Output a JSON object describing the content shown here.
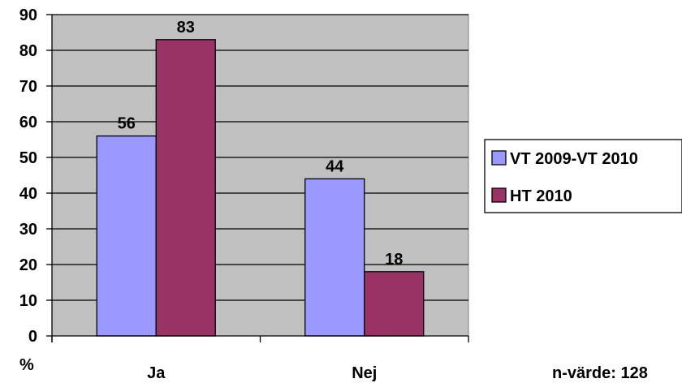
{
  "chart_data": {
    "type": "bar",
    "categories": [
      "Ja",
      "Nej"
    ],
    "series": [
      {
        "name": "VT 2009-VT 2010",
        "values": [
          56,
          44
        ],
        "color": "#9999ff"
      },
      {
        "name": "HT 2010",
        "values": [
          83,
          18
        ],
        "color": "#993366"
      }
    ],
    "ylim": [
      0,
      90
    ],
    "yticks": [
      0,
      10,
      20,
      30,
      40,
      50,
      60,
      70,
      80,
      90
    ],
    "ylabel": "%",
    "plot_background": "#c0c0c0",
    "grid": true,
    "legend_position": "right",
    "data_labels": true
  },
  "footnote": "n-värde: 128"
}
